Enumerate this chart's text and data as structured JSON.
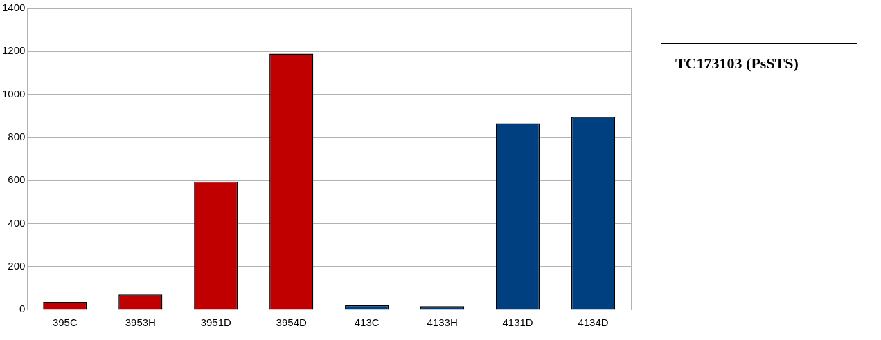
{
  "chart_data": {
    "type": "bar",
    "title": "TC173103 (PsSTS)",
    "categories": [
      "395C",
      "3953H",
      "3951D",
      "3954D",
      "413C",
      "4133H",
      "4131D",
      "4134D"
    ],
    "values": [
      35,
      70,
      595,
      1190,
      20,
      15,
      865,
      895
    ],
    "colors": [
      "#c00000",
      "#c00000",
      "#c00000",
      "#c00000",
      "#003f80",
      "#003f80",
      "#003f80",
      "#003f80"
    ],
    "ylim": [
      0,
      1400
    ],
    "yticks": [
      0,
      200,
      400,
      600,
      800,
      1000,
      1200,
      1400
    ],
    "grid": "y",
    "legend": false
  }
}
